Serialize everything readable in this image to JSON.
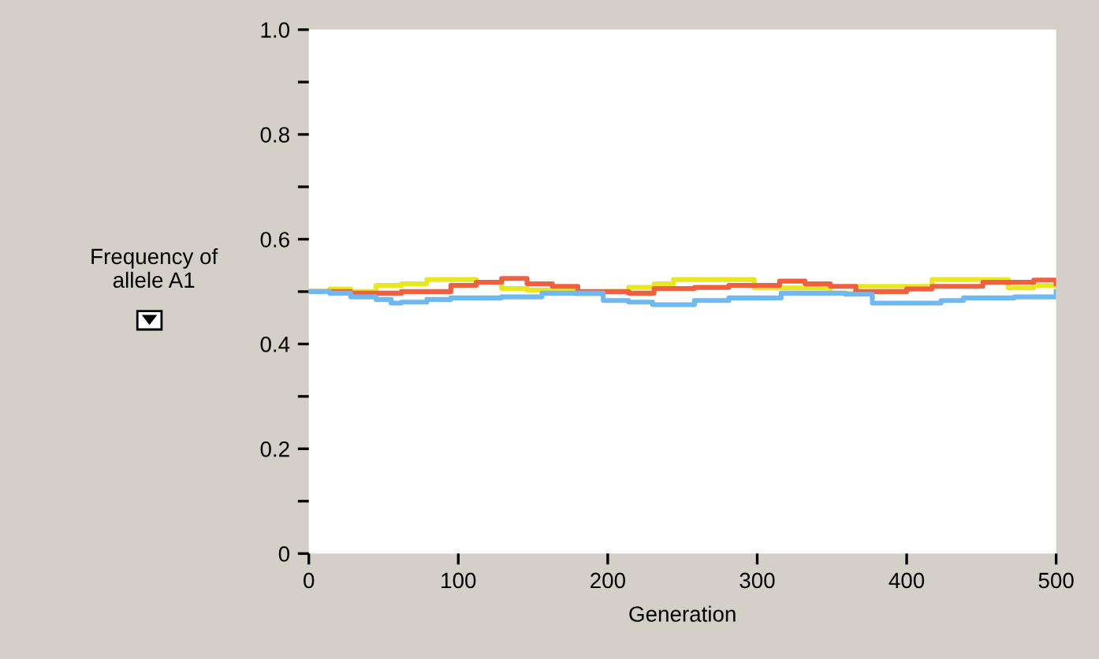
{
  "chart_data": {
    "type": "step",
    "xlabel": "Generation",
    "ylabel": "Frequency of\nallele A1",
    "xlim": [
      0,
      500
    ],
    "xticks": [
      0,
      100,
      200,
      300,
      400,
      500
    ],
    "ylim": [
      0,
      1.0
    ],
    "yticks": [
      {
        "value": 0,
        "label": "0"
      },
      {
        "value": 0.1,
        "label": null
      },
      0.2,
      {
        "value": 0.3,
        "label": null
      },
      0.4,
      {
        "value": 0.5,
        "label": null
      },
      0.6,
      {
        "value": 0.7,
        "label": null
      },
      0.8,
      {
        "value": 0.9,
        "label": null
      },
      {
        "value": 1.0,
        "label": "1.0"
      }
    ],
    "grid": false,
    "legend": false,
    "series": [
      {
        "color": "#e8e820",
        "x": [
          0,
          14,
          28,
          45,
          62,
          79,
          95,
          112,
          129,
          146,
          163,
          180,
          197,
          214,
          231,
          244,
          281,
          298,
          332,
          349,
          366,
          400,
          417,
          451,
          468,
          485,
          500
        ],
        "values": [
          0.5,
          0.505,
          0.5,
          0.512,
          0.515,
          0.523,
          0.523,
          0.518,
          0.506,
          0.503,
          0.503,
          0.495,
          0.5,
          0.508,
          0.515,
          0.523,
          0.523,
          0.507,
          0.507,
          0.497,
          0.51,
          0.51,
          0.523,
          0.523,
          0.507,
          0.512,
          0.515
        ]
      },
      {
        "color": "#f06040",
        "x": [
          0,
          28,
          62,
          95,
          112,
          129,
          146,
          163,
          180,
          214,
          231,
          258,
          281,
          315,
          332,
          349,
          366,
          400,
          417,
          451,
          485,
          500
        ],
        "values": [
          0.5,
          0.497,
          0.5,
          0.512,
          0.518,
          0.525,
          0.515,
          0.51,
          0.5,
          0.497,
          0.506,
          0.508,
          0.512,
          0.52,
          0.515,
          0.51,
          0.5,
          0.505,
          0.51,
          0.518,
          0.522,
          0.515
        ]
      },
      {
        "color": "#70b8f0",
        "x": [
          0,
          14,
          28,
          45,
          55,
          62,
          79,
          95,
          129,
          156,
          180,
          197,
          214,
          230,
          258,
          281,
          316,
          359,
          377,
          400,
          423,
          438,
          472,
          500
        ],
        "values": [
          0.5,
          0.497,
          0.49,
          0.485,
          0.478,
          0.48,
          0.485,
          0.488,
          0.49,
          0.497,
          0.497,
          0.483,
          0.48,
          0.475,
          0.483,
          0.488,
          0.497,
          0.495,
          0.478,
          0.478,
          0.483,
          0.488,
          0.49,
          0.5
        ]
      }
    ]
  }
}
